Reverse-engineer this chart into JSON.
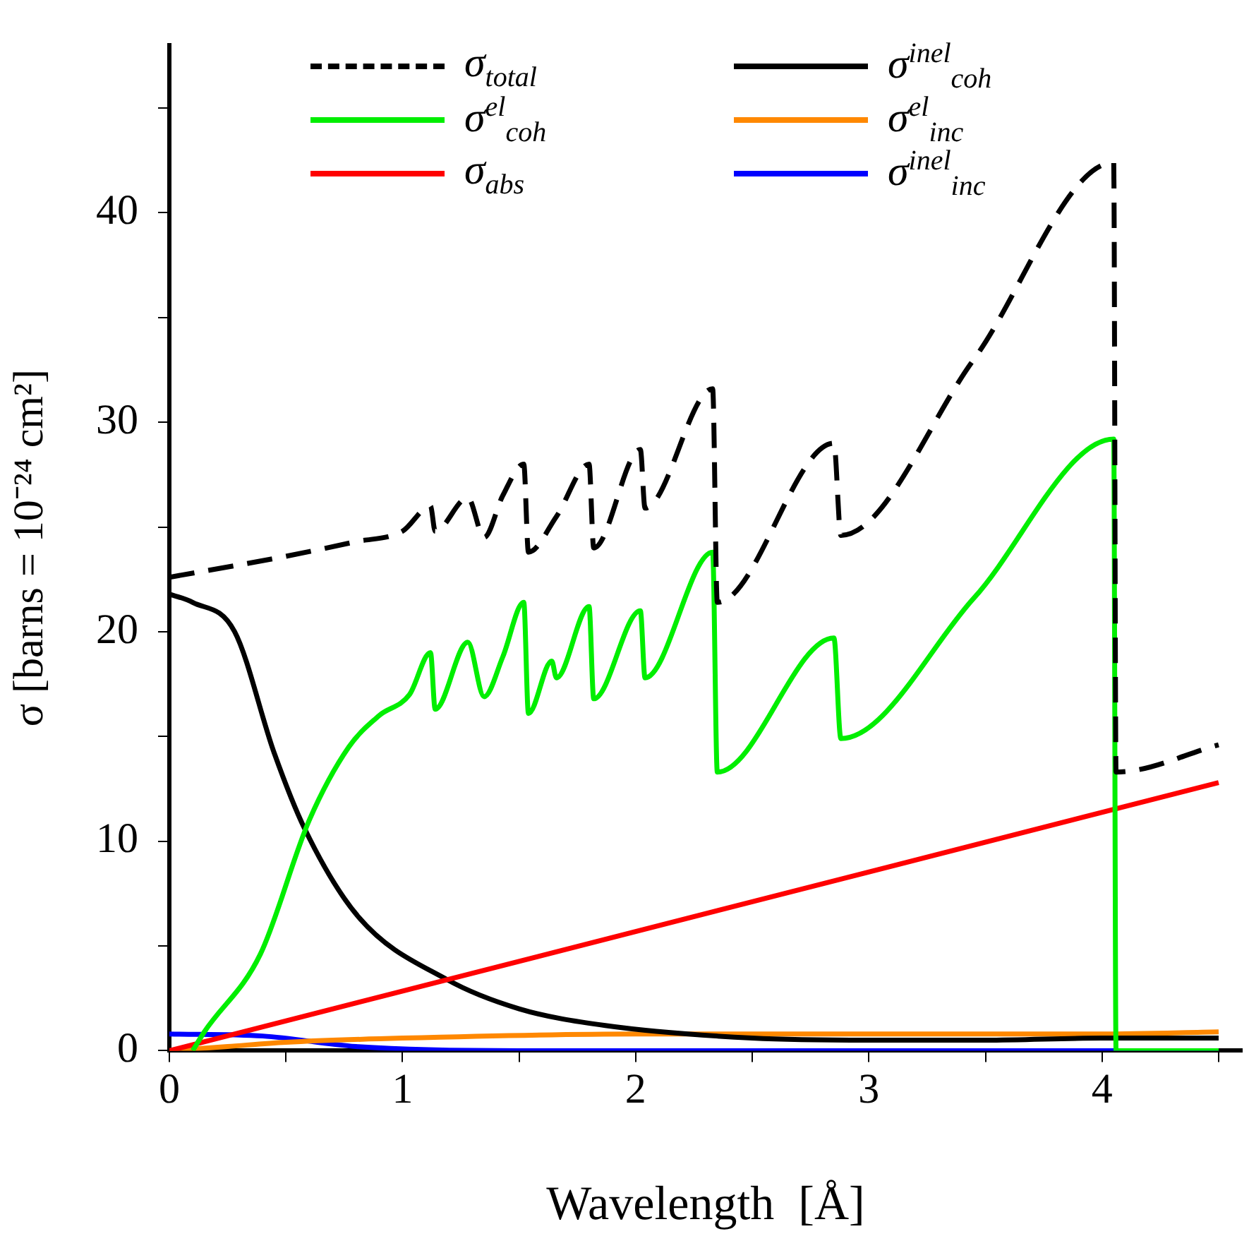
{
  "chart_data": {
    "type": "line",
    "xlabel": "Wavelength  [Å]",
    "ylabel": "σ [barns = 10⁻²⁴ cm²]",
    "xlim": [
      0,
      4.6
    ],
    "xticks": [
      0,
      {
        "value": 0.5,
        "label": null
      },
      1,
      {
        "value": 1.5,
        "label": null
      },
      2,
      {
        "value": 2.5,
        "label": null
      },
      3,
      {
        "value": 3.5,
        "label": null
      },
      4,
      {
        "value": 4.5,
        "label": null
      }
    ],
    "ylim": [
      0,
      48
    ],
    "yticks": [
      0,
      {
        "value": 5,
        "label": null
      },
      10,
      {
        "value": 15,
        "label": null
      },
      20,
      {
        "value": 25,
        "label": null
      },
      30,
      {
        "value": 35,
        "label": null
      },
      40,
      {
        "value": 45,
        "label": null
      }
    ],
    "grid": false,
    "legend": "top",
    "marker": "none",
    "line_style": "solid",
    "series": [
      {
        "name": "σ$_{total}$",
        "color": "#000000",
        "line_style": "dashed",
        "x": [
          0,
          0.5,
          0.8,
          1.0,
          1.12,
          1.14,
          1.28,
          1.35,
          1.43,
          1.52,
          1.54,
          1.66,
          1.8,
          1.82,
          2.02,
          2.04,
          2.33,
          2.35,
          2.85,
          2.88,
          3.45,
          4.05,
          4.06,
          4.5
        ],
        "values": [
          22.6,
          23.6,
          24.3,
          24.8,
          26,
          24.8,
          26.4,
          24.5,
          26.5,
          28,
          23.8,
          25.5,
          28,
          24,
          28.7,
          25.9,
          31.6,
          21.4,
          29,
          24.6,
          33,
          42.4,
          13.3,
          14.6
        ]
      },
      {
        "name": "σ$^{el}$$_{coh}$",
        "color": "#00ee00",
        "x": [
          0.1,
          0.15,
          0.39,
          0.6,
          0.77,
          0.9,
          1.03,
          1.12,
          1.14,
          1.28,
          1.35,
          1.43,
          1.52,
          1.54,
          1.64,
          1.66,
          1.8,
          1.82,
          2.02,
          2.04,
          2.33,
          2.35,
          2.85,
          2.88,
          3.45,
          4.05,
          4.06,
          4.5
        ],
        "values": [
          0,
          0.9,
          4.6,
          11,
          14.5,
          16,
          17,
          19,
          16.3,
          19.5,
          16.9,
          18.8,
          21.4,
          16.1,
          18.6,
          17.8,
          21.2,
          16.8,
          21,
          17.8,
          23.8,
          13.3,
          19.7,
          14.9,
          21.6,
          29.2,
          0,
          0
        ]
      },
      {
        "name": "σ$_{abs}$",
        "color": "#ff0000",
        "x": [
          0,
          4.5
        ],
        "values": [
          0,
          12.8
        ]
      },
      {
        "name": "σ$^{inel}$$_{coh}$",
        "color": "#000000",
        "x": [
          0,
          0.1,
          0.28,
          0.45,
          0.58,
          0.81,
          1.19,
          1.5,
          1.87,
          2.5,
          3,
          3.5,
          4,
          4.5
        ],
        "values": [
          21.8,
          21.4,
          20,
          14.2,
          10.6,
          6.4,
          3.4,
          2,
          1.2,
          0.6,
          0.5,
          0.5,
          0.6,
          0.6
        ]
      },
      {
        "name": "σ$^{el}$$_{inc}$",
        "color": "#ff8800",
        "x": [
          0,
          0.25,
          0.5,
          1,
          2,
          3,
          4,
          4.5
        ],
        "values": [
          0,
          0.2,
          0.4,
          0.6,
          0.8,
          0.8,
          0.8,
          0.9
        ]
      },
      {
        "name": "σ$^{inel}$$_{inc}$",
        "color": "#0000ff",
        "x": [
          0,
          0.4,
          0.8,
          1.5,
          4.5
        ],
        "values": [
          0.8,
          0.7,
          0.2,
          0,
          0
        ]
      }
    ]
  }
}
